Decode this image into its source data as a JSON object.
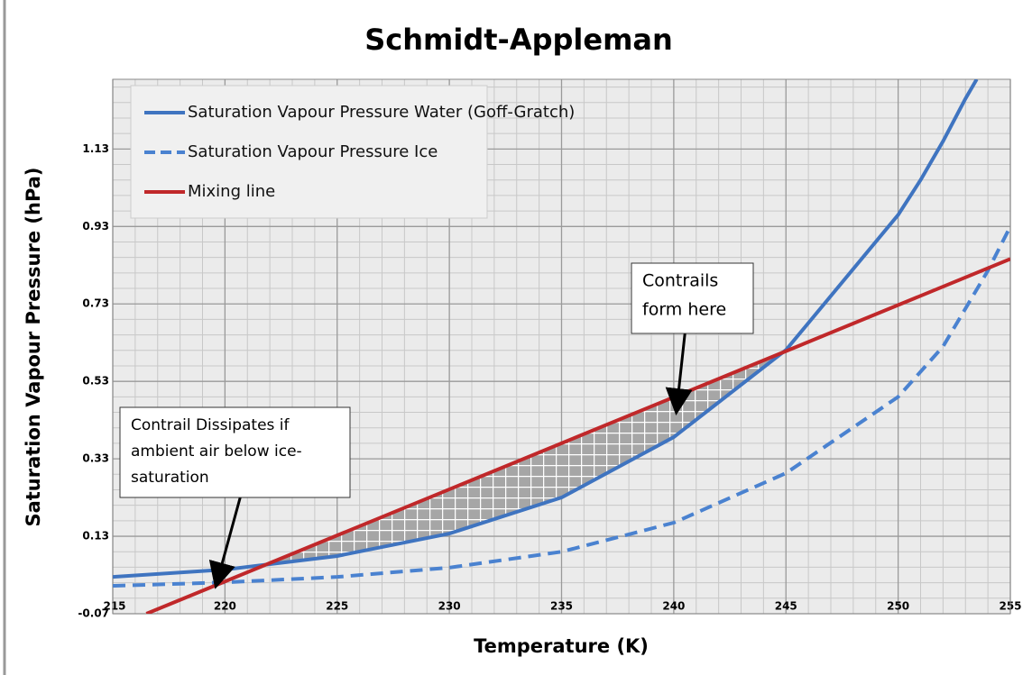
{
  "chart_data": {
    "type": "line",
    "title": "Schmidt-Appleman",
    "x_label": "Temperature (K)",
    "y_label": "Saturation Vapour Pressure (hPa)",
    "xlim": [
      215,
      255
    ],
    "xticks": [
      215,
      220,
      225,
      230,
      235,
      240,
      245,
      250,
      255
    ],
    "ylim": [
      -0.07,
      1.31
    ],
    "yticks": [
      -0.07,
      0.13,
      0.33,
      0.53,
      0.73,
      0.93,
      1.13
    ],
    "grid": true,
    "series": [
      {
        "name": "Saturation Vapour Pressure Water (Goff-Gratch)",
        "color": "#3f74c0",
        "dashed": false,
        "x": [
          215,
          220,
          225,
          230,
          235,
          240,
          245,
          250,
          251,
          252,
          253,
          253.5
        ],
        "values": [
          0.025,
          0.044,
          0.079,
          0.137,
          0.23,
          0.386,
          0.611,
          0.96,
          1.05,
          1.15,
          1.26,
          1.31
        ]
      },
      {
        "name": "Saturation Vapour Pressure Ice",
        "color": "#4a82d0",
        "dashed": true,
        "x": [
          215,
          220,
          225,
          230,
          235,
          240,
          245,
          250,
          252,
          254,
          255
        ],
        "values": [
          0.002,
          0.011,
          0.025,
          0.049,
          0.09,
          0.165,
          0.293,
          0.49,
          0.62,
          0.816,
          0.93
        ]
      },
      {
        "name": "Mixing line",
        "color": "#c0282a",
        "dashed": false,
        "x": [
          216.5,
          255
        ],
        "values": [
          -0.07,
          0.846
        ]
      }
    ],
    "annotations": [
      {
        "lines": [
          "Contrails",
          "form here"
        ]
      },
      {
        "lines": [
          "Contrail Dissipates if",
          "ambient air below ice-",
          "saturation"
        ]
      }
    ]
  }
}
